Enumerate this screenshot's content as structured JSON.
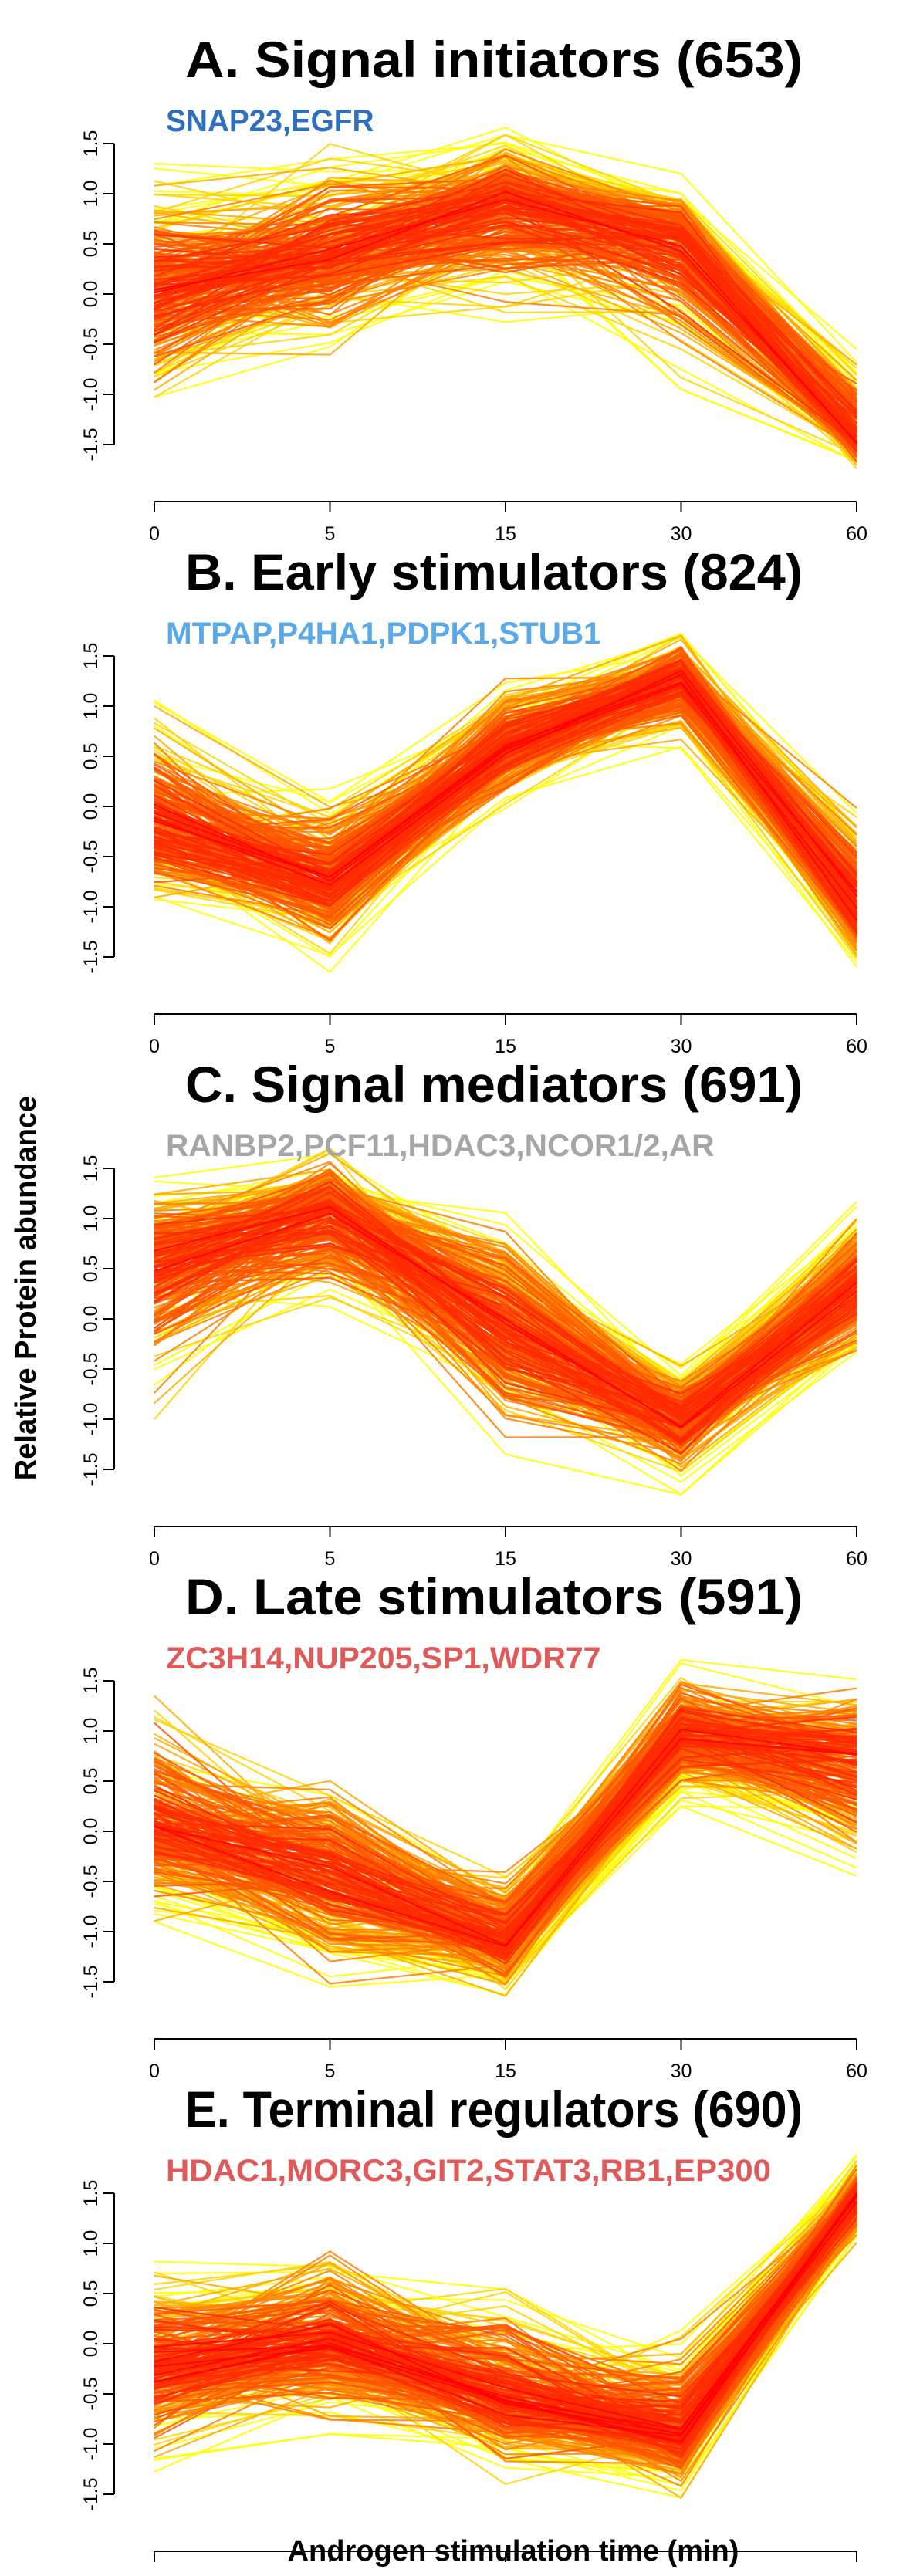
{
  "figure": {
    "ylabel": "Relative Protein abundance",
    "xlabel": "Androgen stimulation time (min)"
  },
  "chart_data": [
    {
      "type": "line",
      "title": "A. Signal initiators (653)",
      "genes": "SNAP23,EGFR",
      "gene_color": "#2e6fbf",
      "x": [
        0,
        5,
        15,
        30,
        60
      ],
      "x_tick_labels": [
        "0",
        "5",
        "15",
        "30",
        "60"
      ],
      "y_ticks": [
        -1.5,
        -1.0,
        -0.5,
        0.0,
        0.5,
        1.0,
        1.5
      ],
      "y_tick_labels": [
        "-1.5",
        "-1.0",
        "-0.5",
        "0.0",
        "0.5",
        "1.0",
        "1.5"
      ],
      "ylim": [
        -1.8,
        1.7
      ],
      "series_count": 653,
      "profile_mean": [
        0.0,
        0.4,
        0.95,
        0.55,
        -1.45
      ],
      "profile_min": [
        -1.25,
        -0.7,
        -0.3,
        -0.95,
        -1.75
      ],
      "profile_max": [
        1.3,
        1.55,
        1.7,
        1.2,
        -0.55
      ],
      "line_colors": [
        "#ff0000",
        "#ff2a00",
        "#ff5500",
        "#ff8000",
        "#ffaa00",
        "#ffd400",
        "#ffff00"
      ]
    },
    {
      "type": "line",
      "title": "B. Early stimulators (824)",
      "genes": "MTPAP,P4HA1,PDPK1,STUB1",
      "gene_color": "#5aa9e8",
      "x": [
        0,
        5,
        15,
        30,
        60
      ],
      "x_tick_labels": [
        "0",
        "5",
        "15",
        "30",
        "60"
      ],
      "y_ticks": [
        -1.5,
        -1.0,
        -0.5,
        0.0,
        0.5,
        1.0,
        1.5
      ],
      "y_tick_labels": [
        "-1.5",
        "-1.0",
        "-0.5",
        "0.0",
        "0.5",
        "1.0",
        "1.5"
      ],
      "ylim": [
        -1.8,
        1.7
      ],
      "series_count": 824,
      "profile_mean": [
        -0.2,
        -0.75,
        0.55,
        1.3,
        -1.05
      ],
      "profile_min": [
        -1.05,
        -1.65,
        -0.05,
        0.55,
        -1.6
      ],
      "profile_max": [
        1.15,
        0.25,
        1.4,
        1.75,
        0.2
      ],
      "line_colors": [
        "#ff0000",
        "#ff2a00",
        "#ff5500",
        "#ff8000",
        "#ffaa00",
        "#ffd400",
        "#ffff00"
      ]
    },
    {
      "type": "line",
      "title": "C. Signal mediators (691)",
      "genes": "RANBP2,PCF11,HDAC3,NCOR1/2,AR",
      "gene_color": "#a6a6a6",
      "x": [
        0,
        5,
        15,
        30,
        60
      ],
      "x_tick_labels": [
        "0",
        "5",
        "15",
        "30",
        "60"
      ],
      "y_ticks": [
        -1.5,
        -1.0,
        -0.5,
        0.0,
        0.5,
        1.0,
        1.5
      ],
      "y_tick_labels": [
        "-1.5",
        "-1.0",
        "-0.5",
        "0.0",
        "0.5",
        "1.0",
        "1.5"
      ],
      "ylim": [
        -1.8,
        1.7
      ],
      "series_count": 691,
      "profile_mean": [
        0.55,
        1.1,
        -0.1,
        -1.0,
        0.35
      ],
      "profile_min": [
        -1.0,
        0.0,
        -1.35,
        -1.75,
        -0.7
      ],
      "profile_max": [
        1.45,
        1.7,
        1.1,
        -0.45,
        1.2
      ],
      "line_colors": [
        "#ff0000",
        "#ff2a00",
        "#ff5500",
        "#ff8000",
        "#ffaa00",
        "#ffd400",
        "#ffff00"
      ]
    },
    {
      "type": "line",
      "title": "D. Late stimulators (591)",
      "genes": "ZC3H14,NUP205,SP1,WDR77",
      "gene_color": "#e05a5a",
      "x": [
        0,
        5,
        15,
        30,
        60
      ],
      "x_tick_labels": [
        "0",
        "5",
        "15",
        "30",
        "60"
      ],
      "y_ticks": [
        -1.5,
        -1.0,
        -0.5,
        0.0,
        0.5,
        1.0,
        1.5
      ],
      "y_tick_labels": [
        "-1.5",
        "-1.0",
        "-0.5",
        "0.0",
        "0.5",
        "1.0",
        "1.5"
      ],
      "ylim": [
        -1.8,
        1.7
      ],
      "series_count": 591,
      "profile_mean": [
        0.05,
        -0.45,
        -1.1,
        0.95,
        0.75
      ],
      "profile_min": [
        -0.9,
        -1.55,
        -1.7,
        0.25,
        -0.6
      ],
      "profile_max": [
        1.35,
        0.75,
        -0.3,
        1.75,
        1.6
      ],
      "line_colors": [
        "#ff0000",
        "#ff2a00",
        "#ff5500",
        "#ff8000",
        "#ffaa00",
        "#ffd400",
        "#ffff00"
      ]
    },
    {
      "type": "line",
      "title": "E. Terminal regulators (690)",
      "genes": "HDAC1,MORC3,GIT2,STAT3,RB1,EP300",
      "gene_color": "#e05a5a",
      "x": [
        0,
        5,
        15,
        30,
        60
      ],
      "x_tick_labels": [
        "0",
        "5",
        "15",
        "30",
        "60"
      ],
      "y_ticks": [
        -1.5,
        -1.0,
        -0.5,
        0.0,
        0.5,
        1.0,
        1.5
      ],
      "y_tick_labels": [
        "-1.5",
        "-1.0",
        "-0.5",
        "0.0",
        "0.5",
        "1.0",
        "1.5"
      ],
      "ylim": [
        -1.8,
        1.7
      ],
      "series_count": 690,
      "profile_mean": [
        -0.2,
        0.0,
        -0.55,
        -0.9,
        1.45
      ],
      "profile_min": [
        -1.35,
        -0.9,
        -1.4,
        -1.6,
        0.95
      ],
      "profile_max": [
        0.95,
        1.1,
        0.75,
        0.2,
        1.9
      ],
      "line_colors": [
        "#ff0000",
        "#ff2a00",
        "#ff5500",
        "#ff8000",
        "#ffaa00",
        "#ffd400",
        "#ffff00"
      ]
    }
  ]
}
